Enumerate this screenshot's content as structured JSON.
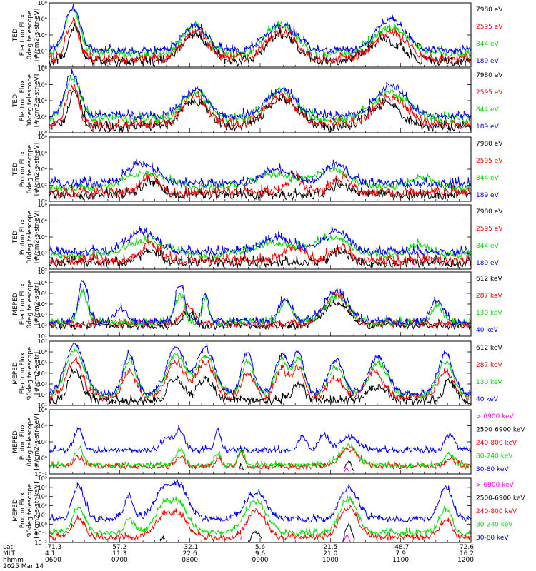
{
  "figure": {
    "footer": {
      "row_labels": [
        "Lat",
        "MLT",
        "hhmm",
        "2025 Mar 14"
      ],
      "lat": [
        "-71.3",
        "57.2",
        "-32.1",
        "5.6",
        "21.5",
        "-48.7",
        "72.6"
      ],
      "mlt": [
        "4.1",
        "11.3",
        "22.6",
        "9.6",
        "21.0",
        "7.9",
        "16.2"
      ],
      "hhmm": [
        "0600",
        "0700",
        "0800",
        "0900",
        "1000",
        "1100",
        "1200"
      ]
    }
  },
  "chart_data": [
    {
      "type": "line",
      "id": "ted-electron-0",
      "ylabel": [
        "TED",
        "Electron Flux",
        "0deg telescope",
        "[#/cm2-s-str-eV]"
      ],
      "yscale": "log",
      "ylim_exp": [
        0,
        8
      ],
      "tick_labels": [
        "10⁰",
        "10²",
        "10⁴",
        "10⁶",
        "10⁸"
      ],
      "x_labels": [
        "0600",
        "0700",
        "0800",
        "0900",
        "1000",
        "1100",
        "1200"
      ],
      "series": [
        {
          "name": "7980 eV",
          "color": "#000000",
          "profile": "ted_e_hi"
        },
        {
          "name": "2595 eV",
          "color": "#ff0000",
          "profile": "ted_e_mid"
        },
        {
          "name": "844 eV",
          "color": "#00dd00",
          "profile": "ted_e_lo"
        },
        {
          "name": "189 eV",
          "color": "#0000ff",
          "profile": "ted_e_vlo"
        }
      ]
    },
    {
      "type": "line",
      "id": "ted-electron-30",
      "ylabel": [
        "TED",
        "Electron Flux",
        "30deg telescope",
        "[#/cm2-s-str-eV]"
      ],
      "yscale": "log",
      "ylim_exp": [
        0,
        8
      ],
      "tick_labels": [
        "10⁰",
        "10²",
        "10⁴",
        "10⁶",
        "10⁸"
      ],
      "x_labels": [
        "0600",
        "0700",
        "0800",
        "0900",
        "1000",
        "1100",
        "1200"
      ],
      "series": [
        {
          "name": "7980 eV",
          "color": "#000000",
          "profile": "ted_e_hi"
        },
        {
          "name": "2595 eV",
          "color": "#ff0000",
          "profile": "ted_e_mid"
        },
        {
          "name": "844 eV",
          "color": "#00dd00",
          "profile": "ted_e_lo"
        },
        {
          "name": "189 eV",
          "color": "#0000ff",
          "profile": "ted_e_vlo"
        }
      ]
    },
    {
      "type": "line",
      "id": "ted-proton-0",
      "ylabel": [
        "TED",
        "Proton Flux",
        "0deg telescope",
        "[#/cm2-s-str-eV]"
      ],
      "yscale": "log",
      "ylim_exp": [
        0,
        8
      ],
      "tick_labels": [
        "10⁰",
        "10²",
        "10⁴",
        "10⁶",
        "10⁸"
      ],
      "x_labels": [
        "0600",
        "0700",
        "0800",
        "0900",
        "1000",
        "1100",
        "1200"
      ],
      "series": [
        {
          "name": "7980 eV",
          "color": "#000000",
          "profile": "ted_p_hi"
        },
        {
          "name": "2595 eV",
          "color": "#ff0000",
          "profile": "ted_p_mid"
        },
        {
          "name": "844 eV",
          "color": "#00dd00",
          "profile": "ted_p_lo"
        },
        {
          "name": "189 eV",
          "color": "#0000ff",
          "profile": "ted_p_vlo"
        }
      ]
    },
    {
      "type": "line",
      "id": "ted-proton-30",
      "ylabel": [
        "TED",
        "Proton Flux",
        "30deg telescope",
        "[#/cm2-s-str-eV]"
      ],
      "yscale": "log",
      "ylim_exp": [
        0,
        8
      ],
      "tick_labels": [
        "10⁰",
        "10²",
        "10⁴",
        "10⁶",
        "10⁸"
      ],
      "x_labels": [
        "0600",
        "0700",
        "0800",
        "0900",
        "1000",
        "1100",
        "1200"
      ],
      "series": [
        {
          "name": "7980 eV",
          "color": "#000000",
          "profile": "ted_p_hi"
        },
        {
          "name": "2595 eV",
          "color": "#ff0000",
          "profile": "ted_p_mid"
        },
        {
          "name": "844 eV",
          "color": "#00dd00",
          "profile": "ted_p_lo"
        },
        {
          "name": "189 eV",
          "color": "#0000ff",
          "profile": "ted_p_vlo"
        }
      ]
    },
    {
      "type": "line",
      "id": "meped-electron-0",
      "ylabel": [
        "MEPED",
        "Electron Flux",
        "0deg telescope",
        "[#/cm2-s-str]"
      ],
      "yscale": "log",
      "ylim_exp": [
        1,
        7
      ],
      "tick_labels": [
        "10¹",
        "10²",
        "10³",
        "10⁴",
        "10⁵",
        "10⁶",
        "10⁷"
      ],
      "x_labels": [
        "0600",
        "0700",
        "0800",
        "0900",
        "1000",
        "1100",
        "1200"
      ],
      "series": [
        {
          "name": "612 keV",
          "color": "#000000",
          "profile": "me0_612"
        },
        {
          "name": "287 keV",
          "color": "#ff0000",
          "profile": "me0_287"
        },
        {
          "name": "130 keV",
          "color": "#00dd00",
          "profile": "me0_130"
        },
        {
          "name": "40 keV",
          "color": "#0000ff",
          "profile": "me0_40"
        }
      ]
    },
    {
      "type": "line",
      "id": "meped-electron-90",
      "ylabel": [
        "MEPED",
        "Electron Flux",
        "90deg telescope",
        "[#/cm2-s-str]"
      ],
      "yscale": "log",
      "ylim_exp": [
        1,
        7
      ],
      "tick_labels": [
        "10¹",
        "10²",
        "10³",
        "10⁴",
        "10⁵",
        "10⁶",
        "10⁷"
      ],
      "x_labels": [
        "0600",
        "0700",
        "0800",
        "0900",
        "1000",
        "1100",
        "1200"
      ],
      "series": [
        {
          "name": "612 keV",
          "color": "#000000",
          "profile": "me90_612"
        },
        {
          "name": "287 keV",
          "color": "#ff0000",
          "profile": "me90_287"
        },
        {
          "name": "130 keV",
          "color": "#00dd00",
          "profile": "me90_130"
        },
        {
          "name": "40 keV",
          "color": "#0000ff",
          "profile": "me90_40"
        }
      ]
    },
    {
      "type": "line",
      "id": "meped-proton-0",
      "ylabel": [
        "MEPED",
        "Proton Flux",
        "0deg telescope",
        "[#/cm2-s-str-keV]"
      ],
      "yscale": "log",
      "ylim_exp": [
        -2,
        6
      ],
      "tick_labels": [
        "10⁻²",
        "10⁰",
        "10²",
        "10⁴",
        "10⁶"
      ],
      "x_labels": [
        "0600",
        "0700",
        "0800",
        "0900",
        "1000",
        "1100",
        "1200"
      ],
      "series": [
        {
          "name": "> 6900 keV",
          "color": "#ff00ff",
          "profile": "mp_6900"
        },
        {
          "name": "2500-6900 keV",
          "color": "#000000",
          "profile": "mp0_2500"
        },
        {
          "name": "240-800 keV",
          "color": "#ff0000",
          "profile": "mp0_240"
        },
        {
          "name": "80-240 keV",
          "color": "#00dd00",
          "profile": "mp0_80"
        },
        {
          "name": "30-80 keV",
          "color": "#0000ff",
          "profile": "mp0_30"
        }
      ]
    },
    {
      "type": "line",
      "id": "meped-proton-90",
      "ylabel": [
        "MEPED",
        "Proton Flux",
        "90deg telescope",
        "[#/cm2-s-str-keV]"
      ],
      "yscale": "log",
      "ylim_exp": [
        -2,
        5
      ],
      "tick_labels": [
        "10⁻²",
        "10⁻¹",
        "10⁰",
        "10¹",
        "10²",
        "10³",
        "10⁴",
        "10⁵"
      ],
      "x_labels": [
        "0600",
        "0700",
        "0800",
        "0900",
        "1000",
        "1100",
        "1200"
      ],
      "series": [
        {
          "name": "> 6900 keV",
          "color": "#ff00ff",
          "profile": "mp_6900"
        },
        {
          "name": "2500-6900 keV",
          "color": "#000000",
          "profile": "mp90_2500"
        },
        {
          "name": "240-800 keV",
          "color": "#ff0000",
          "profile": "mp90_240"
        },
        {
          "name": "80-240 keV",
          "color": "#00dd00",
          "profile": "mp90_80"
        },
        {
          "name": "30-80 keV",
          "color": "#0000ff",
          "profile": "mp90_30"
        }
      ]
    }
  ],
  "profiles": {
    "ted_e_hi": {
      "base": 0.6,
      "peaks": [
        [
          0.06,
          0.02,
          4.3
        ],
        [
          0.345,
          0.045,
          3.4
        ],
        [
          0.55,
          0.05,
          3.4
        ],
        [
          0.795,
          0.055,
          2.8
        ]
      ],
      "noise": 0.55
    },
    "ted_e_mid": {
      "base": 0.9,
      "peaks": [
        [
          0.055,
          0.02,
          5.0
        ],
        [
          0.345,
          0.04,
          3.6
        ],
        [
          0.55,
          0.05,
          3.4
        ],
        [
          0.81,
          0.055,
          3.2
        ]
      ],
      "noise": 0.5
    },
    "ted_e_lo": {
      "base": 1.6,
      "peaks": [
        [
          0.055,
          0.025,
          5.4
        ],
        [
          0.345,
          0.04,
          3.4
        ],
        [
          0.55,
          0.05,
          3.6
        ],
        [
          0.81,
          0.06,
          3.2
        ]
      ],
      "noise": 0.45
    },
    "ted_e_vlo": {
      "base": 2.0,
      "peaks": [
        [
          0.055,
          0.025,
          5.4
        ],
        [
          0.345,
          0.04,
          3.2
        ],
        [
          0.55,
          0.05,
          3.2
        ],
        [
          0.81,
          0.05,
          3.8
        ]
      ],
      "noise": 0.4
    },
    "ted_p_hi": {
      "base": 0.7,
      "peaks": [
        [
          0.24,
          0.03,
          1.6
        ],
        [
          0.69,
          0.03,
          1.4
        ]
      ],
      "noise": 0.5
    },
    "ted_p_mid": {
      "base": 1.0,
      "peaks": [
        [
          0.24,
          0.03,
          2.0
        ],
        [
          0.58,
          0.03,
          1.6
        ],
        [
          0.69,
          0.03,
          1.8
        ]
      ],
      "noise": 0.5
    },
    "ted_p_lo": {
      "base": 1.6,
      "peaks": [
        [
          0.23,
          0.07,
          1.9
        ],
        [
          0.53,
          0.07,
          1.6
        ],
        [
          0.67,
          0.06,
          2.2
        ],
        [
          0.88,
          0.04,
          1.4
        ]
      ],
      "noise": 0.35
    },
    "ted_p_vlo": {
      "base": 2.1,
      "peaks": [
        [
          0.22,
          0.05,
          2.4
        ],
        [
          0.54,
          0.05,
          1.8
        ],
        [
          0.68,
          0.04,
          2.5
        ]
      ],
      "noise": 0.45
    },
    "me0_612": {
      "base": 1.9,
      "peaks": [
        [
          0.33,
          0.02,
          1.2
        ],
        [
          0.68,
          0.04,
          2.2
        ]
      ],
      "noise": 0.3
    },
    "me0_287": {
      "base": 2.1,
      "peaks": [
        [
          0.33,
          0.02,
          1.6
        ],
        [
          0.68,
          0.04,
          2.7
        ]
      ],
      "noise": 0.3
    },
    "me0_130": {
      "base": 2.2,
      "peaks": [
        [
          0.08,
          0.015,
          2.8
        ],
        [
          0.31,
          0.015,
          2.6
        ],
        [
          0.37,
          0.01,
          2.4
        ],
        [
          0.56,
          0.02,
          2.0
        ],
        [
          0.68,
          0.04,
          2.5
        ],
        [
          0.92,
          0.02,
          1.5
        ]
      ],
      "noise": 0.3
    },
    "me0_40": {
      "base": 2.3,
      "peaks": [
        [
          0.08,
          0.015,
          3.8
        ],
        [
          0.17,
          0.02,
          1.3
        ],
        [
          0.31,
          0.015,
          3.6
        ],
        [
          0.37,
          0.01,
          2.8
        ],
        [
          0.56,
          0.02,
          2.3
        ],
        [
          0.68,
          0.04,
          2.7
        ],
        [
          0.92,
          0.02,
          2.0
        ]
      ],
      "noise": 0.3
    },
    "me90_612": {
      "base": 1.4,
      "peaks": [
        [
          0.06,
          0.02,
          3.0
        ],
        [
          0.3,
          0.025,
          2.2
        ],
        [
          0.37,
          0.025,
          2.0
        ],
        [
          0.59,
          0.02,
          1.5
        ],
        [
          0.78,
          0.03,
          1.3
        ],
        [
          0.95,
          0.02,
          1.8
        ]
      ],
      "noise": 0.35
    },
    "me90_287": {
      "base": 1.7,
      "peaks": [
        [
          0.06,
          0.025,
          3.6
        ],
        [
          0.19,
          0.02,
          2.6
        ],
        [
          0.3,
          0.03,
          3.3
        ],
        [
          0.37,
          0.03,
          3.2
        ],
        [
          0.47,
          0.02,
          2.4
        ],
        [
          0.55,
          0.02,
          2.6
        ],
        [
          0.59,
          0.02,
          2.8
        ],
        [
          0.68,
          0.025,
          1.8
        ],
        [
          0.77,
          0.03,
          2.3
        ],
        [
          0.94,
          0.025,
          2.4
        ]
      ],
      "noise": 0.3
    },
    "me90_130": {
      "base": 1.9,
      "peaks": [
        [
          0.06,
          0.03,
          4.2
        ],
        [
          0.19,
          0.02,
          3.4
        ],
        [
          0.3,
          0.03,
          3.8
        ],
        [
          0.37,
          0.03,
          3.7
        ],
        [
          0.47,
          0.02,
          3.2
        ],
        [
          0.55,
          0.02,
          3.2
        ],
        [
          0.59,
          0.02,
          3.4
        ],
        [
          0.68,
          0.025,
          2.6
        ],
        [
          0.78,
          0.03,
          3.0
        ],
        [
          0.94,
          0.025,
          3.2
        ]
      ],
      "noise": 0.25
    },
    "me90_40": {
      "base": 2.0,
      "peaks": [
        [
          0.06,
          0.03,
          4.8
        ],
        [
          0.19,
          0.02,
          3.8
        ],
        [
          0.3,
          0.03,
          4.4
        ],
        [
          0.37,
          0.03,
          4.3
        ],
        [
          0.47,
          0.02,
          3.8
        ],
        [
          0.55,
          0.02,
          3.6
        ],
        [
          0.59,
          0.02,
          3.8
        ],
        [
          0.68,
          0.025,
          3.3
        ],
        [
          0.78,
          0.03,
          3.5
        ],
        [
          0.94,
          0.025,
          3.7
        ]
      ],
      "noise": 0.25
    },
    "mp_6900": {
      "base": -3.0,
      "peaks": [
        [
          0.455,
          0.005,
          1.7
        ],
        [
          0.705,
          0.01,
          1.8
        ]
      ],
      "noise": 0.2
    },
    "mp0_2500": {
      "base": -3.0,
      "peaks": [
        [
          0.455,
          0.008,
          2.2
        ],
        [
          0.71,
          0.015,
          2.6
        ]
      ],
      "noise": 0.2
    },
    "mp0_240": {
      "base": -1.1,
      "peaks": [
        [
          0.07,
          0.015,
          1.2
        ],
        [
          0.31,
          0.015,
          1.3
        ],
        [
          0.4,
          0.01,
          1.0
        ],
        [
          0.455,
          0.01,
          1.8
        ],
        [
          0.71,
          0.03,
          2.0
        ],
        [
          0.95,
          0.015,
          1.0
        ]
      ],
      "noise": 0.3
    },
    "mp0_80": {
      "base": -1.0,
      "peaks": [
        [
          0.07,
          0.015,
          2.2
        ],
        [
          0.31,
          0.015,
          2.0
        ],
        [
          0.4,
          0.01,
          1.5
        ],
        [
          0.455,
          0.01,
          1.8
        ],
        [
          0.71,
          0.03,
          2.4
        ],
        [
          0.95,
          0.015,
          1.5
        ]
      ],
      "noise": 0.3
    },
    "mp0_30": {
      "base": 0.9,
      "peaks": [
        [
          0.07,
          0.015,
          2.6
        ],
        [
          0.28,
          0.02,
          1.5
        ],
        [
          0.31,
          0.015,
          2.4
        ],
        [
          0.4,
          0.01,
          2.5
        ],
        [
          0.6,
          0.015,
          1.5
        ],
        [
          0.65,
          0.015,
          2.0
        ],
        [
          0.71,
          0.03,
          1.6
        ],
        [
          0.95,
          0.015,
          2.0
        ]
      ],
      "noise": 0.3
    },
    "mp90_2500": {
      "base": -3.0,
      "peaks": [
        [
          0.27,
          0.01,
          1.6
        ],
        [
          0.49,
          0.02,
          2.2
        ],
        [
          0.71,
          0.015,
          2.8
        ]
      ],
      "noise": 0.25
    },
    "mp90_240": {
      "base": -1.5,
      "peaks": [
        [
          0.07,
          0.02,
          2.0
        ],
        [
          0.27,
          0.03,
          2.2
        ],
        [
          0.31,
          0.03,
          2.0
        ],
        [
          0.49,
          0.03,
          3.0
        ],
        [
          0.71,
          0.03,
          3.3
        ],
        [
          0.94,
          0.02,
          2.0
        ]
      ],
      "noise": 0.3
    },
    "mp90_80": {
      "base": -1.0,
      "peaks": [
        [
          0.07,
          0.02,
          2.8
        ],
        [
          0.19,
          0.015,
          1.5
        ],
        [
          0.27,
          0.03,
          2.8
        ],
        [
          0.31,
          0.03,
          2.6
        ],
        [
          0.49,
          0.035,
          3.4
        ],
        [
          0.71,
          0.03,
          3.6
        ],
        [
          0.94,
          0.02,
          2.6
        ]
      ],
      "noise": 0.3
    },
    "mp90_30": {
      "base": 0.5,
      "peaks": [
        [
          0.07,
          0.02,
          3.5
        ],
        [
          0.19,
          0.015,
          2.5
        ],
        [
          0.27,
          0.03,
          3.0
        ],
        [
          0.31,
          0.03,
          3.2
        ],
        [
          0.49,
          0.035,
          2.8
        ],
        [
          0.71,
          0.03,
          3.5
        ],
        [
          0.94,
          0.02,
          3.4
        ]
      ],
      "noise": 0.3
    }
  }
}
